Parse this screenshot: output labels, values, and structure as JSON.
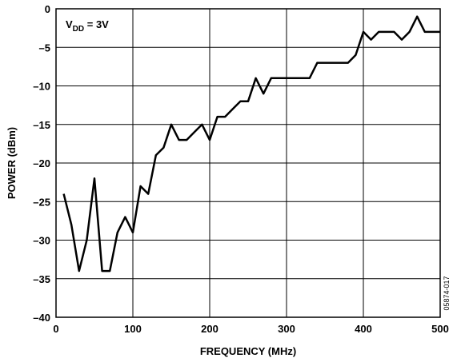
{
  "chart_data": {
    "type": "line",
    "title": "",
    "xlabel": "FREQUENCY (MHz)",
    "ylabel": "POWER (dBm)",
    "xlim": [
      0,
      500
    ],
    "ylim": [
      -40,
      0
    ],
    "xticks": [
      0,
      100,
      200,
      300,
      400,
      500
    ],
    "yticks": [
      0,
      -5,
      -10,
      -15,
      -20,
      -25,
      -30,
      -35,
      -40
    ],
    "grid": true,
    "annotation": {
      "base": "V",
      "sub": "DD",
      "rest": " = 3V"
    },
    "figure_id": "05874-017",
    "series": [
      {
        "x": [
          10,
          20,
          30,
          40,
          50,
          60,
          70,
          80,
          90,
          100,
          110,
          120,
          130,
          140,
          150,
          160,
          170,
          180,
          190,
          200,
          210,
          220,
          230,
          240,
          250,
          260,
          270,
          280,
          290,
          300,
          310,
          320,
          330,
          340,
          350,
          360,
          370,
          380,
          390,
          400,
          410,
          420,
          430,
          440,
          450,
          460,
          470,
          480,
          490,
          500
        ],
        "y": [
          -24,
          -28,
          -34,
          -30,
          -22,
          -34,
          -34,
          -29,
          -27,
          -29,
          -23,
          -24,
          -19,
          -18,
          -15,
          -17,
          -17,
          -16,
          -15,
          -17,
          -14,
          -14,
          -13,
          -12,
          -12,
          -9,
          -11,
          -9,
          -9,
          -9,
          -9,
          -9,
          -9,
          -7,
          -7,
          -7,
          -7,
          -7,
          -6,
          -3,
          -4,
          -3,
          -3,
          -3,
          -4,
          -3,
          -1,
          -3,
          -3,
          -3
        ]
      }
    ]
  }
}
